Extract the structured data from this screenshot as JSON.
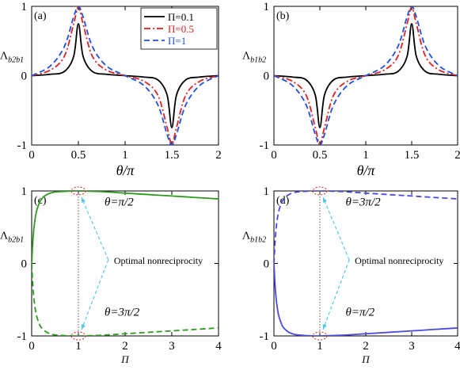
{
  "chart_data": [
    {
      "type": "line",
      "panel_label": "(a)",
      "xlabel": "θ/π",
      "ylabel": "Λb2b1",
      "xlim": [
        0,
        2
      ],
      "ylim": [
        -1,
        1
      ],
      "xticks": [
        "0",
        "0.5",
        "1",
        "1.5",
        "2"
      ],
      "yticks": [
        "-1",
        "0",
        "1"
      ],
      "legend": {
        "placement": "top-right"
      },
      "series": [
        {
          "name": "Π=0.1",
          "color": "#000000",
          "dash": "solid",
          "x": [
            0,
            0.2,
            0.35,
            0.45,
            0.5,
            0.55,
            0.65,
            0.8,
            1.0,
            1.2,
            1.35,
            1.45,
            1.5,
            1.55,
            1.65,
            1.8,
            2.0
          ],
          "y": [
            0,
            0.02,
            0.06,
            0.28,
            0.75,
            0.28,
            0.06,
            0.02,
            0,
            -0.02,
            -0.06,
            -0.28,
            -0.75,
            -0.28,
            -0.06,
            -0.02,
            0
          ]
        },
        {
          "name": "Π=0.5",
          "color": "#e02020",
          "dash": "dashdot",
          "x": [
            0,
            0.2,
            0.35,
            0.45,
            0.5,
            0.55,
            0.65,
            0.8,
            1.0,
            1.2,
            1.35,
            1.45,
            1.5,
            1.55,
            1.65,
            1.8,
            2.0
          ],
          "y": [
            0,
            0.08,
            0.28,
            0.75,
            0.99,
            0.75,
            0.28,
            0.08,
            0,
            -0.08,
            -0.28,
            -0.75,
            -0.99,
            -0.75,
            -0.28,
            -0.08,
            0
          ]
        },
        {
          "name": "Π=1",
          "color": "#2050e0",
          "dash": "dashed",
          "x": [
            0,
            0.2,
            0.35,
            0.45,
            0.5,
            0.55,
            0.65,
            0.8,
            1.0,
            1.2,
            1.35,
            1.45,
            1.5,
            1.55,
            1.65,
            1.8,
            2.0
          ],
          "y": [
            0,
            0.14,
            0.42,
            0.85,
            1.0,
            0.85,
            0.42,
            0.14,
            0,
            -0.14,
            -0.42,
            -0.85,
            -1.0,
            -0.85,
            -0.42,
            -0.14,
            0
          ]
        }
      ]
    },
    {
      "type": "line",
      "panel_label": "(b)",
      "xlabel": "θ/π",
      "ylabel": "Λb1b2",
      "xlim": [
        0,
        2
      ],
      "ylim": [
        -1,
        1
      ],
      "xticks": [
        "0",
        "0.5",
        "1",
        "1.5",
        "2"
      ],
      "yticks": [
        "-1",
        "0",
        "1"
      ],
      "series": [
        {
          "name": "Π=0.1",
          "color": "#000000",
          "dash": "solid",
          "x": [
            0,
            0.2,
            0.35,
            0.45,
            0.5,
            0.55,
            0.65,
            0.8,
            1.0,
            1.2,
            1.35,
            1.45,
            1.5,
            1.55,
            1.65,
            1.8,
            2.0
          ],
          "y": [
            0,
            -0.02,
            -0.06,
            -0.28,
            -0.75,
            -0.28,
            -0.06,
            -0.02,
            0,
            0.02,
            0.06,
            0.28,
            0.75,
            0.28,
            0.06,
            0.02,
            0
          ]
        },
        {
          "name": "Π=0.5",
          "color": "#e02020",
          "dash": "dashdot",
          "x": [
            0,
            0.2,
            0.35,
            0.45,
            0.5,
            0.55,
            0.65,
            0.8,
            1.0,
            1.2,
            1.35,
            1.45,
            1.5,
            1.55,
            1.65,
            1.8,
            2.0
          ],
          "y": [
            0,
            -0.08,
            -0.28,
            -0.75,
            -0.99,
            -0.75,
            -0.28,
            -0.08,
            0,
            0.08,
            0.28,
            0.75,
            0.99,
            0.75,
            0.28,
            0.08,
            0
          ]
        },
        {
          "name": "Π=1",
          "color": "#2050e0",
          "dash": "dashed",
          "x": [
            0,
            0.2,
            0.35,
            0.45,
            0.5,
            0.55,
            0.65,
            0.8,
            1.0,
            1.2,
            1.35,
            1.45,
            1.5,
            1.55,
            1.65,
            1.8,
            2.0
          ],
          "y": [
            0,
            -0.14,
            -0.42,
            -0.85,
            -1.0,
            -0.85,
            -0.42,
            -0.14,
            0,
            0.14,
            0.42,
            0.85,
            1.0,
            0.85,
            0.42,
            0.14,
            0
          ]
        }
      ]
    },
    {
      "type": "line",
      "panel_label": "(c)",
      "xlabel": "Π",
      "ylabel": "Λb2b1",
      "xlim": [
        0,
        4
      ],
      "ylim": [
        -1,
        1
      ],
      "xticks": [
        "0",
        "1",
        "2",
        "3",
        "4"
      ],
      "yticks": [
        "-1",
        "0",
        "1"
      ],
      "annotation": "Optimal nonreciprocity",
      "curve_labels": [
        "θ=π/2",
        "θ=3π/2"
      ],
      "series": [
        {
          "name": "",
          "label_ref": "θ=π/2",
          "color": "#2e9a1e",
          "dash": "solid",
          "x": [
            0,
            0.03,
            0.06,
            0.1,
            0.15,
            0.2,
            0.3,
            0.4,
            0.5,
            0.6,
            0.8,
            1.0,
            1.5,
            2.0,
            2.5,
            3.0,
            3.5,
            4.0
          ],
          "y": [
            0,
            0.35,
            0.55,
            0.71,
            0.81,
            0.88,
            0.94,
            0.97,
            0.985,
            0.99,
            0.998,
            1.0,
            0.99,
            0.97,
            0.95,
            0.93,
            0.91,
            0.89
          ]
        },
        {
          "name": "",
          "label_ref": "θ=3π/2",
          "color": "#2e9a1e",
          "dash": "dashed",
          "x": [
            0,
            0.03,
            0.06,
            0.1,
            0.15,
            0.2,
            0.3,
            0.4,
            0.5,
            0.6,
            0.8,
            1.0,
            1.5,
            2.0,
            2.5,
            3.0,
            3.5,
            4.0
          ],
          "y": [
            0,
            -0.35,
            -0.55,
            -0.71,
            -0.81,
            -0.88,
            -0.94,
            -0.97,
            -0.985,
            -0.99,
            -0.998,
            -1.0,
            -0.99,
            -0.97,
            -0.95,
            -0.93,
            -0.91,
            -0.89
          ]
        }
      ]
    },
    {
      "type": "line",
      "panel_label": "(d)",
      "xlabel": "Π",
      "ylabel": "Λb1b2",
      "xlim": [
        0,
        4
      ],
      "ylim": [
        -1,
        1
      ],
      "xticks": [
        "0",
        "1",
        "2",
        "3",
        "4"
      ],
      "yticks": [
        "-1",
        "0",
        "1"
      ],
      "annotation": "Optimal nonreciprocity",
      "curve_labels": [
        "θ=3π/2",
        "θ=π/2"
      ],
      "series": [
        {
          "name": "",
          "label_ref": "θ=3π/2",
          "color": "#4a4ae0",
          "dash": "dashed",
          "x": [
            0,
            0.03,
            0.06,
            0.1,
            0.15,
            0.2,
            0.3,
            0.4,
            0.5,
            0.6,
            0.8,
            1.0,
            1.5,
            2.0,
            2.5,
            3.0,
            3.5,
            4.0
          ],
          "y": [
            0,
            0.35,
            0.55,
            0.71,
            0.81,
            0.88,
            0.94,
            0.97,
            0.985,
            0.99,
            0.998,
            1.0,
            0.99,
            0.97,
            0.95,
            0.93,
            0.91,
            0.89
          ]
        },
        {
          "name": "",
          "label_ref": "θ=π/2",
          "color": "#4a4ae0",
          "dash": "solid",
          "x": [
            0,
            0.03,
            0.06,
            0.1,
            0.15,
            0.2,
            0.3,
            0.4,
            0.5,
            0.6,
            0.8,
            1.0,
            1.5,
            2.0,
            2.5,
            3.0,
            3.5,
            4.0
          ],
          "y": [
            0,
            -0.35,
            -0.55,
            -0.71,
            -0.81,
            -0.88,
            -0.94,
            -0.97,
            -0.985,
            -0.99,
            -0.998,
            -1.0,
            -0.99,
            -0.97,
            -0.95,
            -0.93,
            -0.91,
            -0.89
          ]
        }
      ]
    }
  ]
}
